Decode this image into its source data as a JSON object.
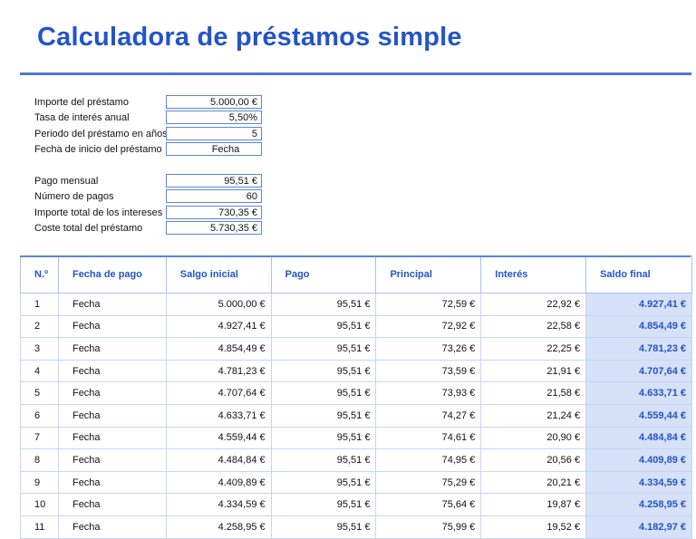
{
  "title": "Calculadora de préstamos simple",
  "inputs": [
    {
      "label": "Importe del préstamo",
      "value": "5.000,00 €"
    },
    {
      "label": "Tasa de interés anual",
      "value": "5,50%"
    },
    {
      "label": "Periodo del préstamo en años",
      "value": "5"
    },
    {
      "label": "Fecha de inicio del préstamo",
      "value": "Fecha"
    }
  ],
  "results": [
    {
      "label": "Pago mensual",
      "value": "95,51 €"
    },
    {
      "label": "Número de pagos",
      "value": "60"
    },
    {
      "label": "Importe total de los intereses",
      "value": "730,35 €"
    },
    {
      "label": "Coste total del préstamo",
      "value": "5.730,35 €"
    }
  ],
  "schedule": {
    "headers": [
      "N.º",
      "Fecha de pago",
      "Salgo inicial",
      "Pago",
      "Principal",
      "Interés",
      "Saldo final"
    ],
    "rows": [
      [
        "1",
        "Fecha",
        "5.000,00 €",
        "95,51 €",
        "72,59 €",
        "22,92 €",
        "4.927,41 €"
      ],
      [
        "2",
        "Fecha",
        "4.927,41 €",
        "95,51 €",
        "72,92 €",
        "22,58 €",
        "4.854,49 €"
      ],
      [
        "3",
        "Fecha",
        "4.854,49 €",
        "95,51 €",
        "73,26 €",
        "22,25 €",
        "4.781,23 €"
      ],
      [
        "4",
        "Fecha",
        "4.781,23 €",
        "95,51 €",
        "73,59 €",
        "21,91 €",
        "4.707,64 €"
      ],
      [
        "5",
        "Fecha",
        "4.707,64 €",
        "95,51 €",
        "73,93 €",
        "21,58 €",
        "4.633,71 €"
      ],
      [
        "6",
        "Fecha",
        "4.633,71 €",
        "95,51 €",
        "74,27 €",
        "21,24 €",
        "4.559,44 €"
      ],
      [
        "7",
        "Fecha",
        "4.559,44 €",
        "95,51 €",
        "74,61 €",
        "20,90 €",
        "4.484,84 €"
      ],
      [
        "8",
        "Fecha",
        "4.484,84 €",
        "95,51 €",
        "74,95 €",
        "20,56 €",
        "4.409,89 €"
      ],
      [
        "9",
        "Fecha",
        "4.409,89 €",
        "95,51 €",
        "75,29 €",
        "20,21 €",
        "4.334,59 €"
      ],
      [
        "10",
        "Fecha",
        "4.334,59 €",
        "95,51 €",
        "75,64 €",
        "19,87 €",
        "4.258,95 €"
      ],
      [
        "11",
        "Fecha",
        "4.258,95 €",
        "95,51 €",
        "75,99 €",
        "19,52 €",
        "4.182,97 €"
      ]
    ]
  },
  "colors": {
    "accent": "#2354c9",
    "rule": "#4a78db",
    "highlight": "#d6e1f8"
  }
}
